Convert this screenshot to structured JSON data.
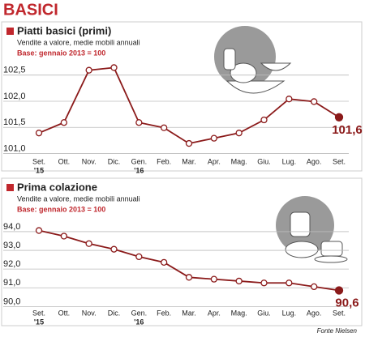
{
  "header": {
    "title": "BASICI"
  },
  "source": "Fonte Nielsen",
  "chart_data": [
    {
      "type": "line",
      "title": "Piatti basici (primi)",
      "subtitle": "Vendite a valore, medie mobili annuali",
      "base_note": "Base: gennaio 2013 = 100",
      "categories": [
        "Set.",
        "Ott.",
        "Nov.",
        "Dic.",
        "Gen.",
        "Feb.",
        "Mar.",
        "Apr.",
        "Mag.",
        "Giu.",
        "Lug.",
        "Ago.",
        "Set."
      ],
      "year_labels": [
        "'15",
        null,
        null,
        null,
        "'16",
        null,
        null,
        null,
        null,
        null,
        null,
        null,
        null
      ],
      "values": [
        101.3,
        101.5,
        102.5,
        102.55,
        101.5,
        101.4,
        101.1,
        101.2,
        101.3,
        101.55,
        101.95,
        101.9,
        101.6
      ],
      "value_labels": [
        null,
        null,
        null,
        null,
        null,
        null,
        null,
        null,
        null,
        null,
        null,
        null,
        "101,6"
      ],
      "color": "#8b1a1a",
      "grid": true,
      "ylim": [
        100.9,
        102.65
      ],
      "yticks": [
        {
          "value": 101.0,
          "label": "101,0"
        },
        {
          "value": 101.5,
          "label": "101,5"
        },
        {
          "value": 102.0,
          "label": "102,0"
        },
        {
          "value": 102.5,
          "label": "102,5"
        }
      ]
    },
    {
      "type": "line",
      "title": "Prima colazione",
      "subtitle": "Vendite a valore, medie mobili annuali",
      "base_note": "Base: gennaio 2013 = 100",
      "categories": [
        "Set.",
        "Ott.",
        "Nov.",
        "Dic.",
        "Gen.",
        "Feb.",
        "Mar.",
        "Apr.",
        "Mag.",
        "Giu.",
        "Lug.",
        "Ago.",
        "Set."
      ],
      "year_labels": [
        "'15",
        null,
        null,
        null,
        "'16",
        null,
        null,
        null,
        null,
        null,
        null,
        null,
        null
      ],
      "values": [
        93.8,
        93.5,
        93.1,
        92.8,
        92.4,
        92.1,
        91.3,
        91.2,
        91.1,
        91.0,
        91.0,
        90.8,
        90.6
      ],
      "value_labels": [
        null,
        null,
        null,
        null,
        null,
        null,
        null,
        null,
        null,
        null,
        null,
        null,
        "90,6"
      ],
      "color": "#8b1a1a",
      "grid": true,
      "ylim": [
        89.8,
        94.3
      ],
      "yticks": [
        {
          "value": 90.0,
          "label": "90,0"
        },
        {
          "value": 91.0,
          "label": "91,0"
        },
        {
          "value": 92.0,
          "label": "92,0"
        },
        {
          "value": 93.0,
          "label": "93,0"
        },
        {
          "value": 94.0,
          "label": "94,0"
        }
      ]
    }
  ]
}
